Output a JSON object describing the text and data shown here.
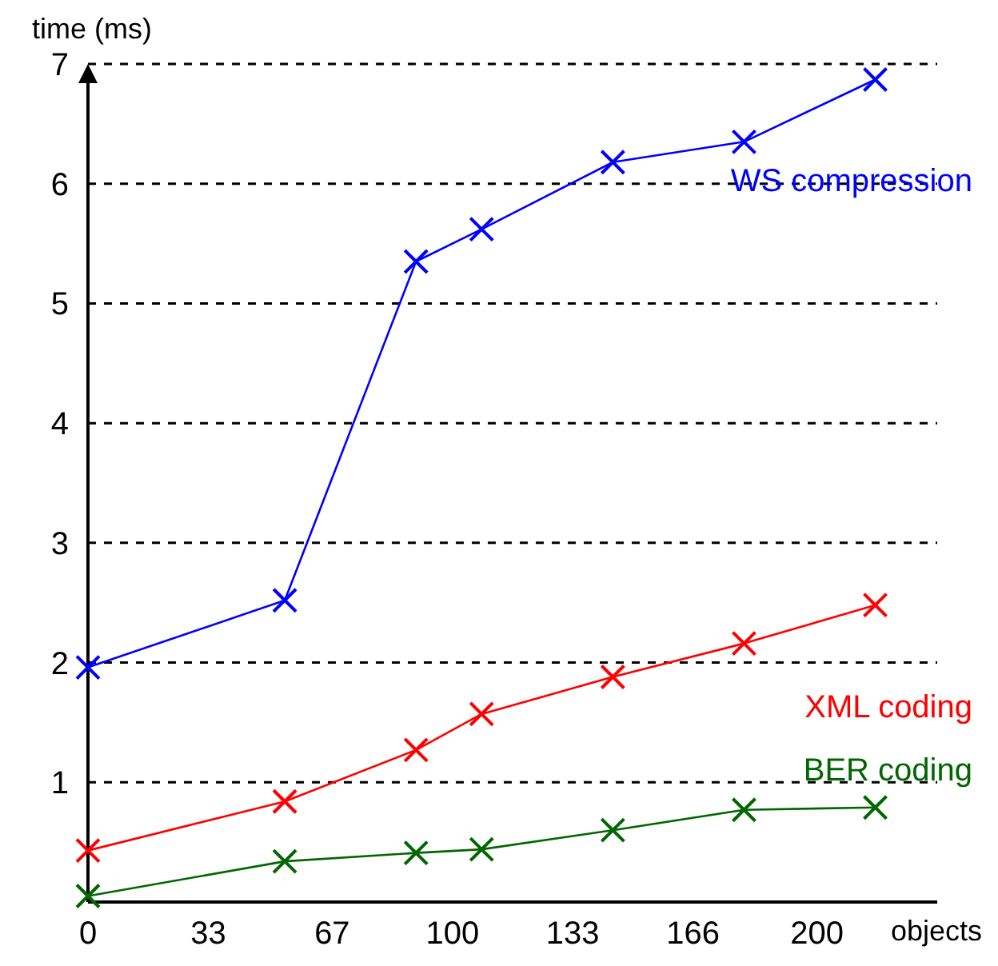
{
  "chart_data": {
    "type": "line",
    "xlabel": "objects",
    "ylabel": "time (ms)",
    "x": [
      0,
      54,
      90,
      108,
      144,
      180,
      216
    ],
    "series": [
      {
        "name": "WS compression",
        "color": "#0000ff",
        "values": [
          1.96,
          2.52,
          5.35,
          5.62,
          6.18,
          6.35,
          6.87
        ]
      },
      {
        "name": "XML coding",
        "color": "#ff0000",
        "values": [
          0.43,
          0.84,
          1.27,
          1.57,
          1.88,
          2.16,
          2.48
        ]
      },
      {
        "name": "BER coding",
        "color": "#006600",
        "values": [
          0.05,
          0.34,
          0.41,
          0.44,
          0.6,
          0.77,
          0.79
        ]
      }
    ],
    "xlim": [
      0,
      233
    ],
    "ylim": [
      0,
      7
    ],
    "xticks": [
      0,
      33,
      67,
      100,
      133,
      166,
      200
    ],
    "yticks": [
      1,
      2,
      3,
      4,
      5,
      6,
      7
    ],
    "grid": "y",
    "marker": "cross",
    "line_style": "solid"
  }
}
